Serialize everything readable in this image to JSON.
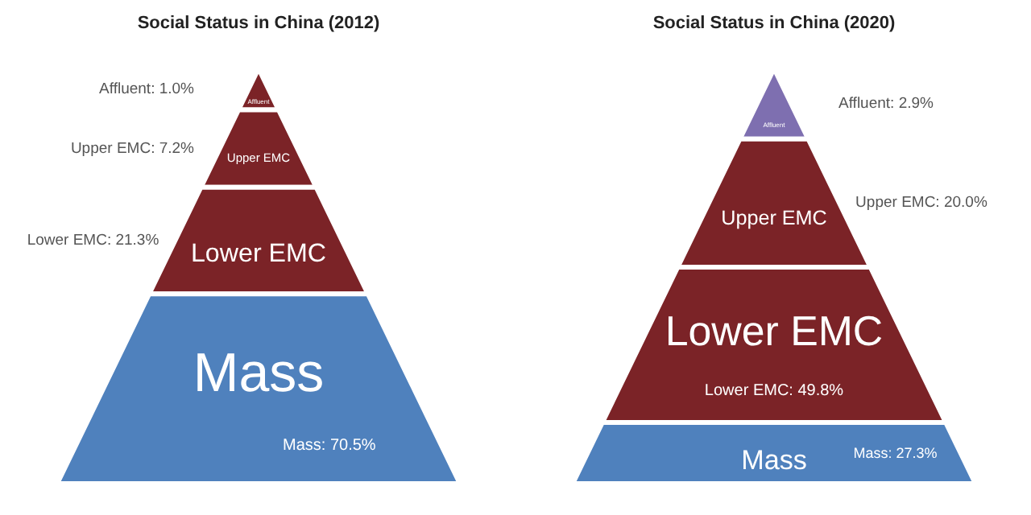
{
  "chart_data": [
    {
      "type": "other",
      "title": "Social Status in China (2012)",
      "categories": [
        "Affluent",
        "Upper EMC",
        "Lower EMC",
        "Mass"
      ],
      "values": [
        1.0,
        7.2,
        21.3,
        70.5
      ],
      "colors": [
        "#7b2327",
        "#7b2327",
        "#7b2327",
        "#4f81bd"
      ],
      "value_labels": [
        "Affluent: 1.0%",
        "Upper EMC: 7.2%",
        "Lower EMC: 21.3%",
        "Mass: 70.5%"
      ]
    },
    {
      "type": "other",
      "title": "Social Status in China (2020)",
      "categories": [
        "Affluent",
        "Upper EMC",
        "Lower EMC",
        "Mass"
      ],
      "values": [
        2.9,
        20.0,
        49.8,
        27.3
      ],
      "colors": [
        "#7e6fb0",
        "#7b2327",
        "#7b2327",
        "#4f81bd"
      ],
      "value_labels": [
        "Affluent: 2.9%",
        "Upper EMC: 20.0%",
        "Lower EMC: 49.8%",
        "Mass: 27.3%"
      ]
    }
  ]
}
